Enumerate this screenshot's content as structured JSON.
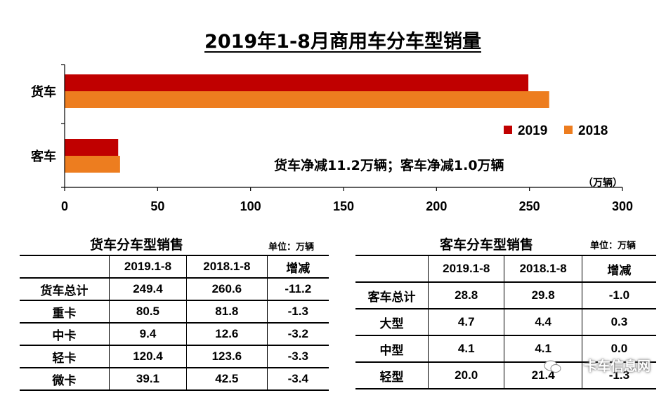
{
  "chart_data": {
    "type": "bar",
    "orientation": "horizontal",
    "title": "2019年1-8月商用车分车型销量",
    "categories": [
      "货车",
      "客车"
    ],
    "series": [
      {
        "name": "2019",
        "values": [
          249.4,
          28.8
        ],
        "color": "#c00000"
      },
      {
        "name": "2018",
        "values": [
          260.6,
          29.8
        ],
        "color": "#ed7d1f"
      }
    ],
    "xlim": [
      0,
      300
    ],
    "xticks": [
      0,
      50,
      100,
      150,
      200,
      250,
      300
    ],
    "unit_label": "（万辆）",
    "legend_position": "right",
    "annotation": "货车净减11.2万辆；客车净减1.0万辆",
    "grid": false
  },
  "truck_table": {
    "title": "货车分车型销售",
    "unit": "单位：万辆",
    "headers": [
      "",
      "2019.1-8",
      "2018.1-8",
      "增减"
    ],
    "rows": [
      [
        "货车总计",
        "249.4",
        "260.6",
        "-11.2"
      ],
      [
        "重卡",
        "80.5",
        "81.8",
        "-1.3"
      ],
      [
        "中卡",
        "9.4",
        "12.6",
        "-3.2"
      ],
      [
        "轻卡",
        "120.4",
        "123.6",
        "-3.3"
      ],
      [
        "微卡",
        "39.1",
        "42.5",
        "-3.4"
      ]
    ]
  },
  "bus_table": {
    "title": "客车分车型销售",
    "unit": "单位：万辆",
    "headers": [
      "",
      "2019.1-8",
      "2018.1-8",
      "增减"
    ],
    "rows": [
      [
        "客车总计",
        "28.8",
        "29.8",
        "-1.0"
      ],
      [
        "大型",
        "4.7",
        "4.4",
        "0.3"
      ],
      [
        "中型",
        "4.1",
        "4.1",
        "0.0"
      ],
      [
        "轻型",
        "20.0",
        "21.4",
        "-1.3"
      ]
    ]
  },
  "watermark": {
    "text": "卡车信息网",
    "icon": "wechat-icon"
  }
}
